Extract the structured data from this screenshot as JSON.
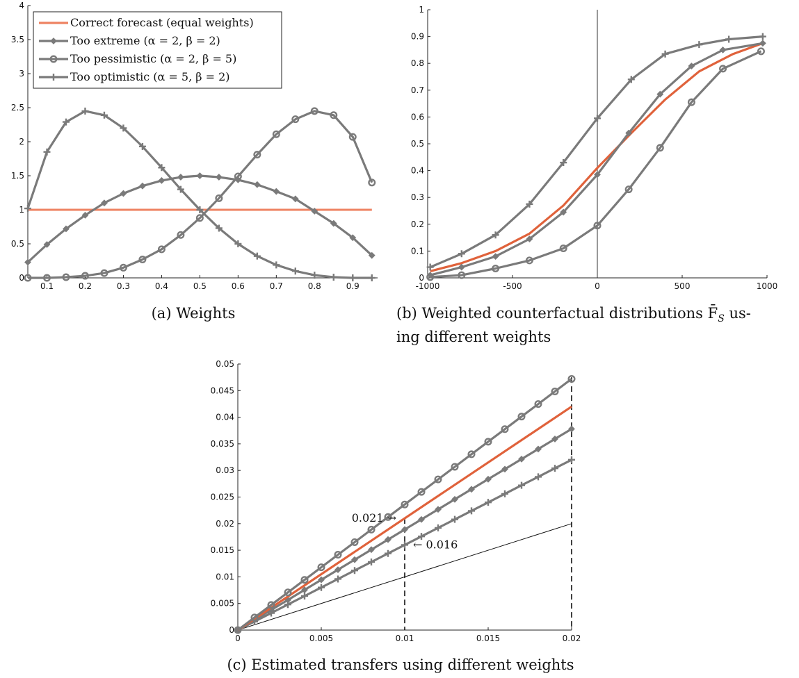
{
  "colors": {
    "correct": "#E0623B",
    "weight_correct": "#EE8262",
    "gray": "#7A7A7A",
    "black": "#111111"
  },
  "legend": {
    "entries": [
      {
        "label": "Correct forecast (equal weights)",
        "marker": "none"
      },
      {
        "label": "Too extreme (α = 2, β = 2)",
        "marker": "diamond"
      },
      {
        "label": "Too pessimistic (α = 2, β = 5)",
        "marker": "circle"
      },
      {
        "label": "Too optimistic (α = 5, β = 2)",
        "marker": "plus"
      }
    ]
  },
  "chart_data": [
    {
      "id": "a",
      "type": "line",
      "caption": "(a)  Weights",
      "xlim": [
        0.05,
        0.965
      ],
      "ylim": [
        0,
        4
      ],
      "xticks": [
        "0.1",
        "0.2",
        "0.3",
        "0.4",
        "0.5",
        "0.6",
        "0.7",
        "0.8",
        "0.9"
      ],
      "xtick_values": [
        0.1,
        0.2,
        0.3,
        0.4,
        0.5,
        0.6,
        0.7,
        0.8,
        0.9
      ],
      "yticks": [
        "0",
        "0.5",
        "1",
        "1.5",
        "2",
        "2.5",
        "3",
        "3.5",
        "4"
      ],
      "ytick_values": [
        0,
        0.5,
        1,
        1.5,
        2,
        2.5,
        3,
        3.5,
        4
      ],
      "x": [
        0.05,
        0.1,
        0.15,
        0.2,
        0.25,
        0.3,
        0.35,
        0.4,
        0.45,
        0.5,
        0.55,
        0.6,
        0.65,
        0.7,
        0.75,
        0.8,
        0.85,
        0.9,
        0.95
      ],
      "series": [
        {
          "key": "correct",
          "marker": "none",
          "values": [
            1,
            1,
            1,
            1,
            1,
            1,
            1,
            1,
            1,
            1,
            1,
            1,
            1,
            1,
            1,
            1,
            1,
            1,
            1
          ]
        },
        {
          "key": "extreme",
          "marker": "diamond",
          "values": [
            0.23,
            0.49,
            0.72,
            0.92,
            1.1,
            1.24,
            1.35,
            1.43,
            1.48,
            1.5,
            1.48,
            1.44,
            1.37,
            1.27,
            1.16,
            0.98,
            0.8,
            0.59,
            0.33
          ]
        },
        {
          "key": "pessimistic",
          "marker": "circle",
          "values": [
            0,
            0.0,
            0.01,
            0.03,
            0.07,
            0.15,
            0.27,
            0.42,
            0.63,
            0.88,
            1.17,
            1.49,
            1.81,
            2.11,
            2.33,
            2.45,
            2.39,
            2.07,
            1.4
          ]
        },
        {
          "key": "optimistic",
          "marker": "plus",
          "values": [
            1.02,
            1.85,
            2.29,
            2.45,
            2.39,
            2.2,
            1.93,
            1.62,
            1.3,
            1.0,
            0.73,
            0.5,
            0.32,
            0.19,
            0.1,
            0.04,
            0.01,
            0.0,
            0
          ]
        }
      ]
    },
    {
      "id": "b",
      "type": "line",
      "caption_lines": [
        "(b)  Weighted counterfactual distributions F̄",
        "S",
        " us-",
        "ing different weights"
      ],
      "xlim": [
        -1000,
        1000
      ],
      "ylim": [
        0,
        1
      ],
      "xticks": [
        "-1000",
        "-500",
        "0",
        "500",
        "1000"
      ],
      "xtick_values": [
        -1000,
        -500,
        0,
        500,
        1000
      ],
      "yticks": [
        "0",
        "0.1",
        "0.2",
        "0.3",
        "0.4",
        "0.5",
        "0.6",
        "0.7",
        "0.8",
        "0.9",
        "1"
      ],
      "ytick_values": [
        0,
        0.1,
        0.2,
        0.3,
        0.4,
        0.5,
        0.6,
        0.7,
        0.8,
        0.9,
        1
      ],
      "vline": 0,
      "series": [
        {
          "key": "correct",
          "marker": "none",
          "x": [
            -985,
            -800,
            -600,
            -400,
            -200,
            0,
            200,
            400,
            600,
            800,
            975
          ],
          "values": [
            0.025,
            0.055,
            0.1,
            0.165,
            0.27,
            0.41,
            0.54,
            0.665,
            0.77,
            0.835,
            0.875
          ]
        },
        {
          "key": "optimistic",
          "marker": "plus",
          "x": [
            -985,
            -800,
            -600,
            -400,
            -200,
            0,
            200,
            400,
            600,
            775,
            975
          ],
          "values": [
            0.04,
            0.09,
            0.16,
            0.275,
            0.43,
            0.595,
            0.74,
            0.835,
            0.87,
            0.89,
            0.9
          ]
        },
        {
          "key": "extreme",
          "marker": "diamond",
          "x": [
            -985,
            -800,
            -600,
            -400,
            -200,
            0,
            185,
            370,
            555,
            740,
            975
          ],
          "values": [
            0.01,
            0.04,
            0.08,
            0.145,
            0.245,
            0.385,
            0.54,
            0.685,
            0.79,
            0.85,
            0.875
          ]
        },
        {
          "key": "pessimistic",
          "marker": "circle",
          "x": [
            -985,
            -800,
            -600,
            -400,
            -200,
            0,
            185,
            370,
            555,
            740,
            965
          ],
          "values": [
            0.003,
            0.01,
            0.035,
            0.065,
            0.11,
            0.195,
            0.33,
            0.485,
            0.655,
            0.78,
            0.845
          ]
        }
      ]
    },
    {
      "id": "c",
      "type": "line",
      "caption": "(c)  Estimated transfers using different weights",
      "xlim": [
        0,
        0.02
      ],
      "ylim": [
        0,
        0.05
      ],
      "xticks": [
        "0",
        "0.005",
        "0.01",
        "0.015",
        "0.02"
      ],
      "xtick_values": [
        0,
        0.005,
        0.01,
        0.015,
        0.02
      ],
      "yticks": [
        "0",
        "0.005",
        "0.01",
        "0.015",
        "0.02",
        "0.025",
        "0.03",
        "0.035",
        "0.04",
        "0.045",
        "0.05"
      ],
      "ytick_values": [
        0,
        0.005,
        0.01,
        0.015,
        0.02,
        0.025,
        0.03,
        0.035,
        0.04,
        0.045,
        0.05
      ],
      "series": [
        {
          "key": "correct",
          "marker": "none",
          "slope": 2.1
        },
        {
          "key": "pessimistic",
          "marker": "circle",
          "slope": 2.36
        },
        {
          "key": "extreme",
          "marker": "diamond",
          "slope": 1.89
        },
        {
          "key": "optimistic",
          "marker": "plus",
          "slope": 1.6
        },
        {
          "key": "identity",
          "marker": "none",
          "slope": 1.0
        }
      ],
      "marker_x_step": 0.001,
      "dashed_x": [
        0.01,
        0.02
      ],
      "annotations": [
        {
          "text": "0.021 →",
          "x": 0.01,
          "y": 0.021,
          "anchor": "end"
        },
        {
          "text": "← 0.016",
          "x": 0.01,
          "y": 0.016,
          "anchor": "start"
        }
      ]
    }
  ]
}
